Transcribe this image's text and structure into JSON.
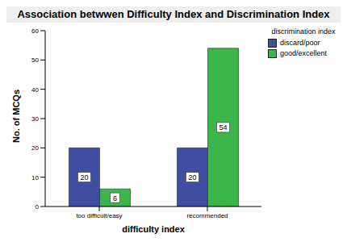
{
  "chart_data": {
    "type": "bar",
    "title": "Association betwwen Difficulty Index and Discrimination Index",
    "x_label": "difficulty index",
    "y_label": "No. of MCQs",
    "legend_title": "discrimination index",
    "categories": [
      "too difficult/easy",
      "recommended"
    ],
    "series": [
      {
        "name": "discard/poor",
        "color": "#3f4ea1",
        "values": [
          20,
          20
        ]
      },
      {
        "name": "good/excellent",
        "color": "#3cb64a",
        "values": [
          6,
          54
        ]
      }
    ],
    "ylim": [
      0,
      60
    ],
    "yticks": [
      0,
      10,
      20,
      30,
      40,
      50,
      60
    ],
    "grid": false,
    "legend": "right",
    "data_labels": true
  }
}
